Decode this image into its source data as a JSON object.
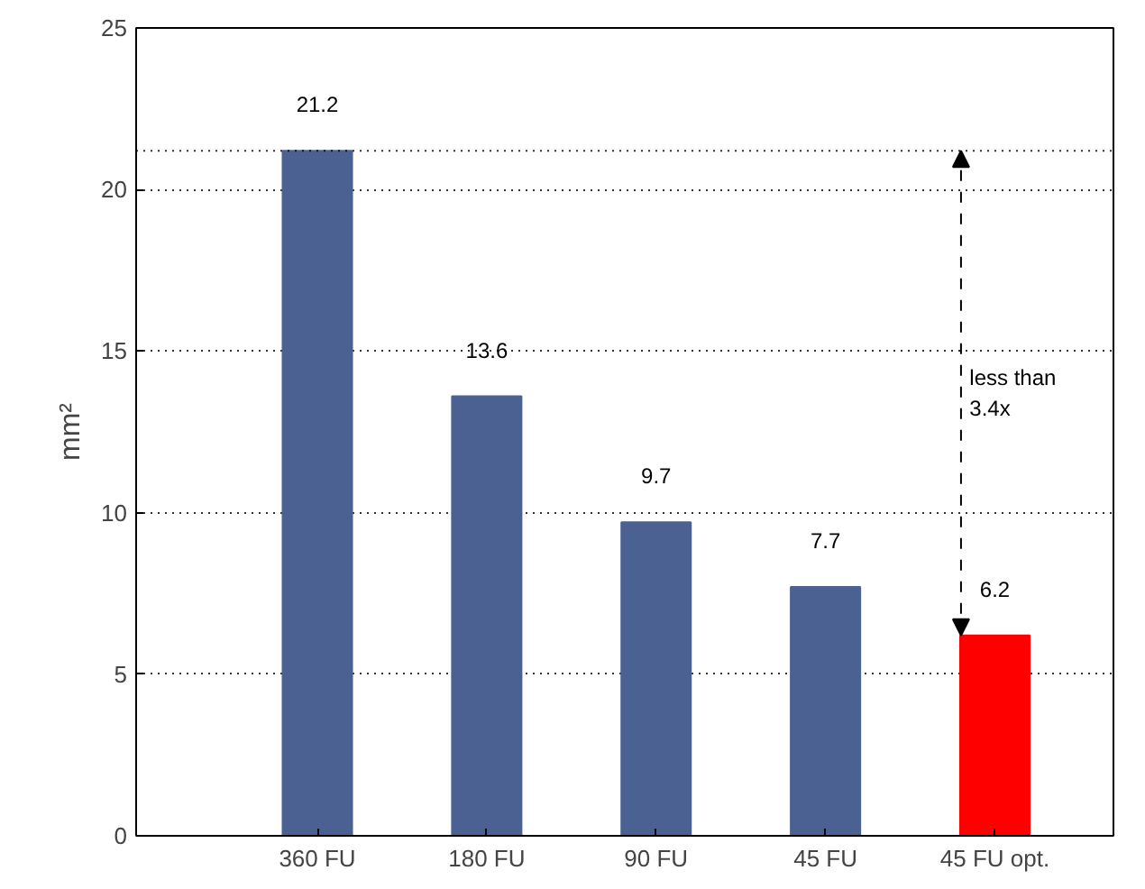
{
  "chart_data": {
    "type": "bar",
    "ylabel": "mm²",
    "categories": [
      "360 FU",
      "180 FU",
      "90 FU",
      "45 FU",
      "45 FU opt."
    ],
    "values": [
      21.2,
      13.6,
      9.7,
      7.7,
      6.2
    ],
    "colors": [
      "#4b6191",
      "#4b6191",
      "#4b6191",
      "#4b6191",
      "#ff0000"
    ],
    "ylim": [
      0,
      25
    ],
    "yticks": [
      0,
      5,
      10,
      15,
      20,
      25
    ],
    "grid": "y",
    "data_labels": true,
    "ref_lines": [
      {
        "axis": "y",
        "value": 21.2,
        "line_style": "dotted"
      }
    ],
    "annotations": [
      "less than 3.4x"
    ]
  }
}
